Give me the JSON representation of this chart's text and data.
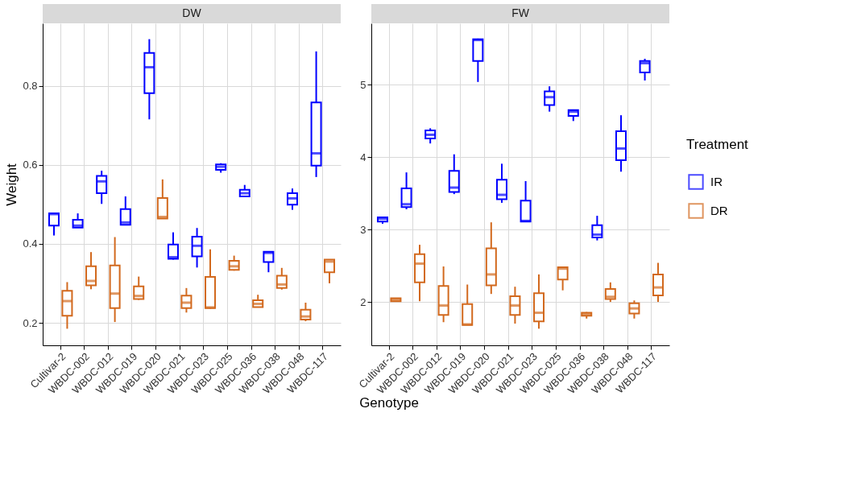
{
  "chart_data": [
    {
      "type": "box",
      "title": "DW",
      "ylabel": "Weight",
      "xlabel": "Genotype",
      "legend_title": "Treatment",
      "legend": "right",
      "grid": true,
      "categories": [
        "Cultivar-2",
        "WBDC-002",
        "WBDC-012",
        "WBDC-019",
        "WBDC-020",
        "WBDC-021",
        "WBDC-023",
        "WBDC-025",
        "WBDC-036",
        "WBDC-038",
        "WBDC-048",
        "WBDC-117"
      ],
      "ylim": [
        0.143,
        0.958
      ],
      "yticks": [
        0.2,
        0.4,
        0.6,
        0.8
      ],
      "series": [
        {
          "name": "IR",
          "color": "#0000ff",
          "boxes": [
            {
              "low": 0.421,
              "q1": 0.446,
              "median": 0.475,
              "q3": 0.477,
              "high": 0.478
            },
            {
              "low": 0.441,
              "q1": 0.441,
              "median": 0.446,
              "q3": 0.461,
              "high": 0.477
            },
            {
              "low": 0.501,
              "q1": 0.528,
              "median": 0.558,
              "q3": 0.572,
              "high": 0.585
            },
            {
              "low": 0.448,
              "q1": 0.448,
              "median": 0.454,
              "q3": 0.488,
              "high": 0.52
            },
            {
              "low": 0.715,
              "q1": 0.781,
              "median": 0.847,
              "q3": 0.883,
              "high": 0.918
            },
            {
              "low": 0.36,
              "q1": 0.362,
              "median": 0.366,
              "q3": 0.398,
              "high": 0.429
            },
            {
              "low": 0.34,
              "q1": 0.368,
              "median": 0.395,
              "q3": 0.418,
              "high": 0.44
            },
            {
              "low": 0.58,
              "q1": 0.587,
              "median": 0.595,
              "q3": 0.601,
              "high": 0.604
            },
            {
              "low": 0.52,
              "q1": 0.52,
              "median": 0.528,
              "q3": 0.537,
              "high": 0.549
            },
            {
              "low": 0.328,
              "q1": 0.354,
              "median": 0.377,
              "q3": 0.38,
              "high": 0.381
            },
            {
              "low": 0.486,
              "q1": 0.499,
              "median": 0.515,
              "q3": 0.528,
              "high": 0.54
            },
            {
              "low": 0.569,
              "q1": 0.598,
              "median": 0.629,
              "q3": 0.758,
              "high": 0.887
            }
          ]
        },
        {
          "name": "DR",
          "color": "#d2691e",
          "boxes": [
            {
              "low": 0.185,
              "q1": 0.218,
              "median": 0.255,
              "q3": 0.281,
              "high": 0.303
            },
            {
              "low": 0.285,
              "q1": 0.295,
              "median": 0.306,
              "q3": 0.343,
              "high": 0.379
            },
            {
              "low": 0.202,
              "q1": 0.237,
              "median": 0.274,
              "q3": 0.345,
              "high": 0.417
            },
            {
              "low": 0.258,
              "q1": 0.26,
              "median": 0.268,
              "q3": 0.292,
              "high": 0.317
            },
            {
              "low": 0.464,
              "q1": 0.464,
              "median": 0.468,
              "q3": 0.516,
              "high": 0.563
            },
            {
              "low": 0.226,
              "q1": 0.237,
              "median": 0.251,
              "q3": 0.269,
              "high": 0.288
            },
            {
              "low": 0.236,
              "q1": 0.237,
              "median": 0.239,
              "q3": 0.316,
              "high": 0.386
            },
            {
              "low": 0.332,
              "q1": 0.334,
              "median": 0.343,
              "q3": 0.357,
              "high": 0.37
            },
            {
              "low": 0.24,
              "q1": 0.24,
              "median": 0.248,
              "q3": 0.257,
              "high": 0.271
            },
            {
              "low": 0.284,
              "q1": 0.288,
              "median": 0.297,
              "q3": 0.319,
              "high": 0.339
            },
            {
              "low": 0.204,
              "q1": 0.208,
              "median": 0.216,
              "q3": 0.233,
              "high": 0.251
            },
            {
              "low": 0.3,
              "q1": 0.328,
              "median": 0.355,
              "q3": 0.36,
              "high": 0.361
            }
          ]
        }
      ]
    },
    {
      "type": "box",
      "title": "FW",
      "grid": true,
      "legend": "right",
      "categories": [
        "Cultivar-2",
        "WBDC-002",
        "WBDC-012",
        "WBDC-019",
        "WBDC-020",
        "WBDC-021",
        "WBDC-023",
        "WBDC-025",
        "WBDC-036",
        "WBDC-038",
        "WBDC-048",
        "WBDC-117"
      ],
      "ylim": [
        1.4,
        5.85
      ],
      "yticks": [
        2,
        3,
        4,
        5
      ],
      "series": [
        {
          "name": "IR",
          "color": "#0000ff",
          "boxes": [
            {
              "low": 3.08,
              "q1": 3.11,
              "median": 3.15,
              "q3": 3.17,
              "high": 3.18
            },
            {
              "low": 3.28,
              "q1": 3.31,
              "median": 3.35,
              "q3": 3.57,
              "high": 3.79
            },
            {
              "low": 4.19,
              "q1": 4.26,
              "median": 4.31,
              "q3": 4.37,
              "high": 4.4
            },
            {
              "low": 3.49,
              "q1": 3.52,
              "median": 3.58,
              "q3": 3.81,
              "high": 4.04
            },
            {
              "low": 5.04,
              "q1": 5.33,
              "median": 5.62,
              "q3": 5.63,
              "high": 5.64
            },
            {
              "low": 3.37,
              "q1": 3.42,
              "median": 3.48,
              "q3": 3.69,
              "high": 3.91
            },
            {
              "low": 3.11,
              "q1": 3.11,
              "median": 3.12,
              "q3": 3.4,
              "high": 3.67
            },
            {
              "low": 4.63,
              "q1": 4.72,
              "median": 4.83,
              "q3": 4.91,
              "high": 4.98
            },
            {
              "low": 4.5,
              "q1": 4.57,
              "median": 4.63,
              "q3": 4.65,
              "high": 4.66
            },
            {
              "low": 2.85,
              "q1": 2.89,
              "median": 2.93,
              "q3": 3.06,
              "high": 3.19
            },
            {
              "low": 3.8,
              "q1": 3.96,
              "median": 4.12,
              "q3": 4.36,
              "high": 4.58
            },
            {
              "low": 5.06,
              "q1": 5.17,
              "median": 5.3,
              "q3": 5.33,
              "high": 5.36
            }
          ]
        },
        {
          "name": "DR",
          "color": "#d2691e",
          "boxes": [
            {
              "low": 2.01,
              "q1": 2.01,
              "median": 2.03,
              "q3": 2.05,
              "high": 2.05
            },
            {
              "low": 2.01,
              "q1": 2.27,
              "median": 2.53,
              "q3": 2.66,
              "high": 2.79
            },
            {
              "low": 1.72,
              "q1": 1.82,
              "median": 1.95,
              "q3": 2.22,
              "high": 2.49
            },
            {
              "low": 1.68,
              "q1": 1.68,
              "median": 1.69,
              "q3": 1.97,
              "high": 2.24
            },
            {
              "low": 2.11,
              "q1": 2.23,
              "median": 2.38,
              "q3": 2.74,
              "high": 3.1
            },
            {
              "low": 1.7,
              "q1": 1.82,
              "median": 1.95,
              "q3": 2.08,
              "high": 2.21
            },
            {
              "low": 1.63,
              "q1": 1.73,
              "median": 1.85,
              "q3": 2.12,
              "high": 2.38
            },
            {
              "low": 2.16,
              "q1": 2.31,
              "median": 2.46,
              "q3": 2.48,
              "high": 2.49
            },
            {
              "low": 1.77,
              "q1": 1.81,
              "median": 1.83,
              "q3": 1.85,
              "high": 1.86
            },
            {
              "low": 2.0,
              "q1": 2.04,
              "median": 2.07,
              "q3": 2.18,
              "high": 2.27
            },
            {
              "low": 1.77,
              "q1": 1.84,
              "median": 1.91,
              "q3": 1.98,
              "high": 2.02
            },
            {
              "low": 2.0,
              "q1": 2.09,
              "median": 2.2,
              "q3": 2.38,
              "high": 2.54
            }
          ]
        }
      ]
    }
  ]
}
